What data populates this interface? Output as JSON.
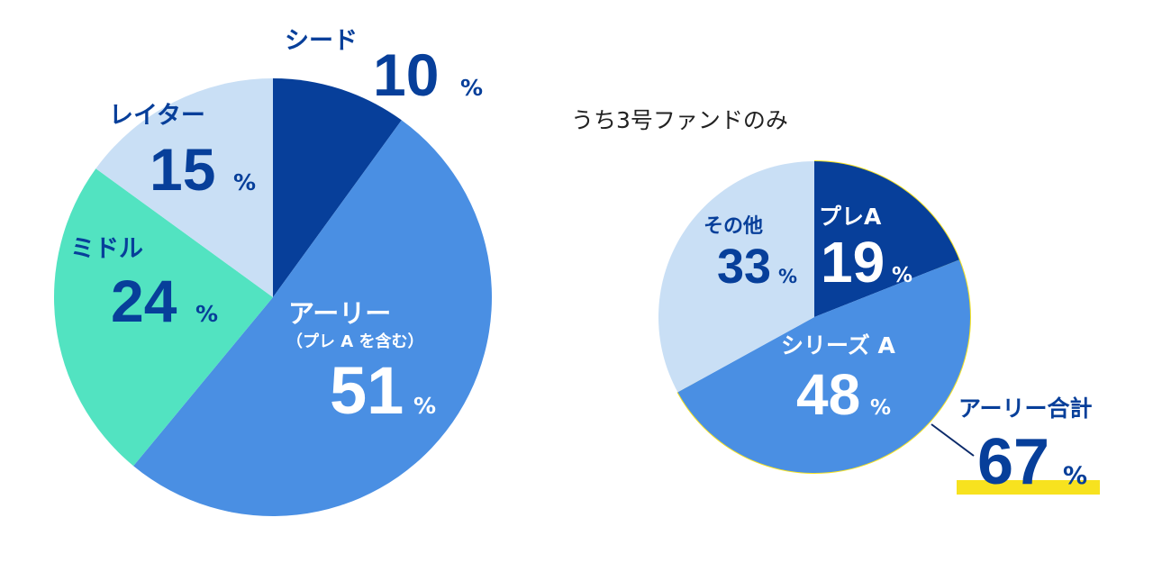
{
  "chart_data": [
    {
      "type": "pie",
      "title": "",
      "categories": [
        "シード",
        "アーリー（プレAを含む）",
        "ミドル",
        "レイター"
      ],
      "values": [
        10,
        51,
        24,
        15
      ],
      "unit": "%",
      "colors": [
        "#073f9a",
        "#4a8fe3",
        "#52e3c1",
        "#c9dff5"
      ],
      "labels": [
        {
          "name": "シード",
          "value": "10",
          "unit": "%"
        },
        {
          "name": "アーリー",
          "note": "（プレ A を含む）",
          "value": "51",
          "unit": "%"
        },
        {
          "name": "ミドル",
          "value": "24",
          "unit": "%"
        },
        {
          "name": "レイター",
          "value": "15",
          "unit": "%"
        }
      ]
    },
    {
      "type": "pie",
      "title": "うち3号ファンドのみ",
      "categories": [
        "プレA",
        "シリーズ A",
        "その他"
      ],
      "values": [
        19,
        48,
        33
      ],
      "unit": "%",
      "colors": [
        "#073f9a",
        "#4a8fe3",
        "#c9dff5"
      ],
      "labels": [
        {
          "name": "プレA",
          "value": "19",
          "unit": "%"
        },
        {
          "name": "シリーズ A",
          "value": "48",
          "unit": "%"
        },
        {
          "name": "その他",
          "value": "33",
          "unit": "%"
        }
      ],
      "highlight": {
        "label": "アーリー合計",
        "value": "67",
        "unit": "%",
        "color": "#f7e21f"
      }
    }
  ]
}
